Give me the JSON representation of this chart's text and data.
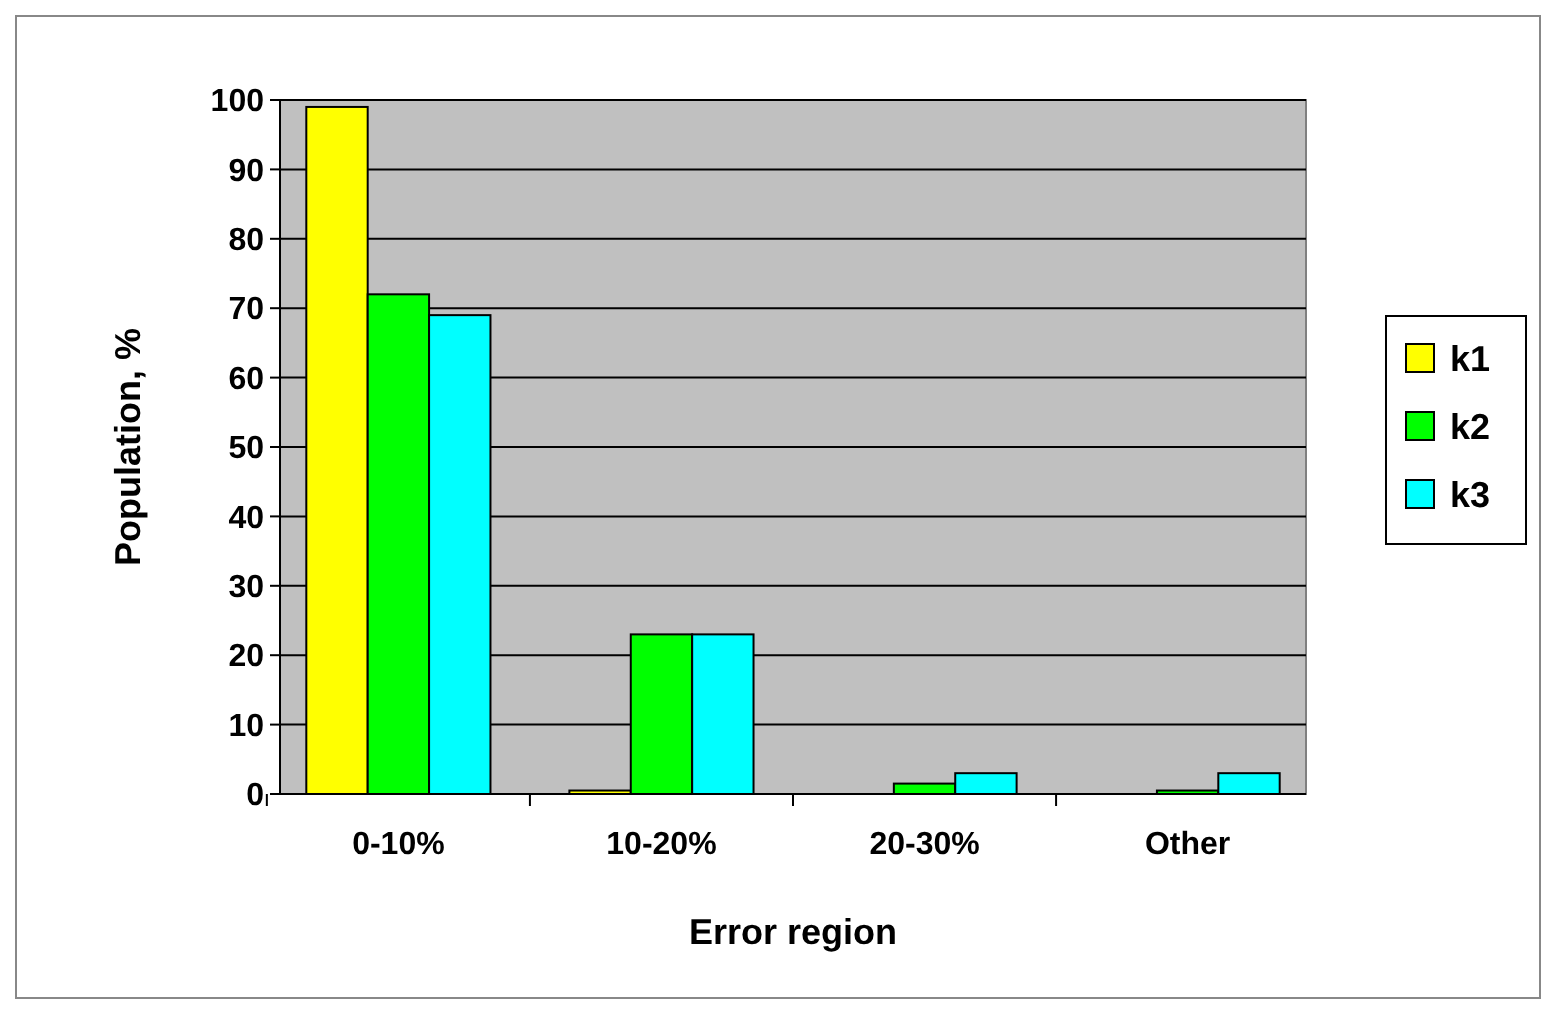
{
  "chart_data": {
    "type": "bar",
    "xlabel": "Error region",
    "ylabel": "Population, %",
    "categories": [
      "0-10%",
      "10-20%",
      "20-30%",
      "Other"
    ],
    "series": [
      {
        "name": "k1",
        "color": "#ffff00",
        "values": [
          99,
          0.5,
          0,
          0
        ]
      },
      {
        "name": "k2",
        "color": "#00ff00",
        "values": [
          72,
          23,
          1.5,
          0.5
        ]
      },
      {
        "name": "k3",
        "color": "#00ffff",
        "values": [
          69,
          23,
          3,
          3
        ]
      }
    ],
    "ylim": [
      0,
      100
    ],
    "yticks": [
      0,
      10,
      20,
      30,
      40,
      50,
      60,
      70,
      80,
      90,
      100
    ],
    "grid": "y",
    "legend": "right"
  }
}
